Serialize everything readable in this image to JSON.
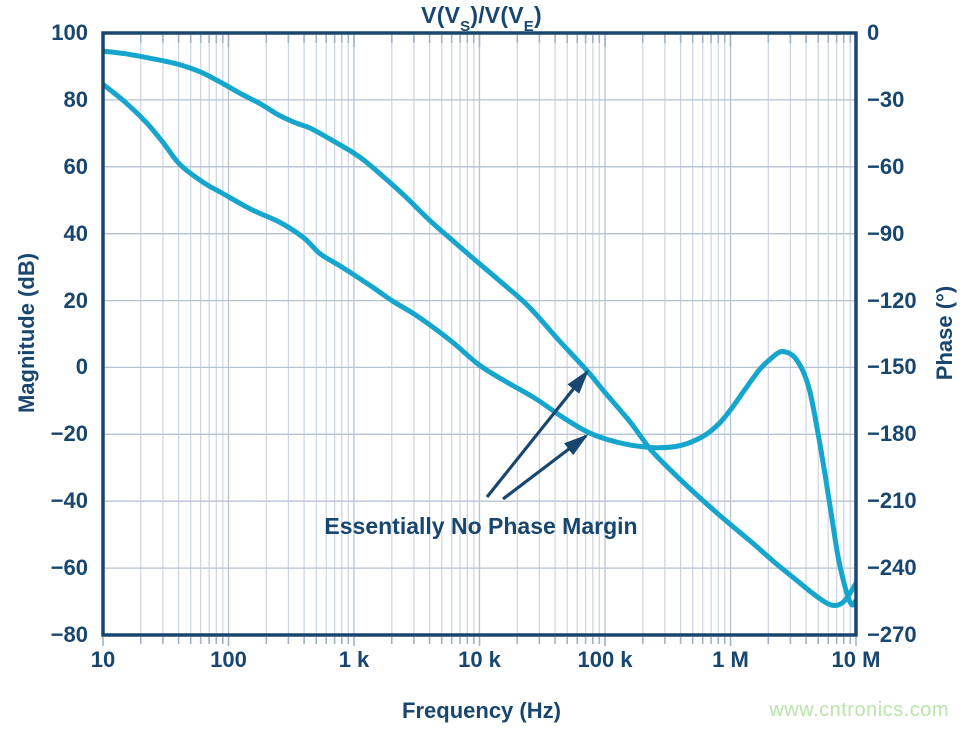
{
  "title": {
    "pre": "V(V",
    "sub1": "S",
    "mid": ")/V(V",
    "sub2": "E",
    "post": ")"
  },
  "watermark": "www.cntronics.com",
  "colors": {
    "curve_cyan": "#15a5cd",
    "axis_navy": "#18466f",
    "grid_minor": "#cdd5e2",
    "grid_major": "#b7c2d3",
    "tick_stub": "#a3b2c6",
    "watermark_green": "#b9e5ab",
    "background": "#ffffff"
  },
  "chart_data": {
    "type": "line",
    "title": "V(V_S)/V(V_E)",
    "xlabel": "Frequency (Hz)",
    "ylabel_left": "Magnitude (dB)",
    "ylabel_right": "Phase (°)",
    "x_scale": "log",
    "xlim": [
      10,
      10000000
    ],
    "ylim_left": [
      -80,
      100
    ],
    "ylim_right": [
      -270,
      0
    ],
    "grid": true,
    "x_ticks": [
      10,
      100,
      1000,
      10000,
      100000,
      1000000,
      10000000
    ],
    "x_tick_labels": [
      "10",
      "100",
      "1 k",
      "10 k",
      "100 k",
      "1 M",
      "10 M"
    ],
    "y_left_ticks": [
      100,
      80,
      60,
      40,
      20,
      0,
      -20,
      -40,
      -60,
      -80
    ],
    "y_left_tick_labels": [
      "100",
      "80",
      "60",
      "40",
      "20",
      "0",
      "−20",
      "−40",
      "−60",
      "−80"
    ],
    "y_right_ticks": [
      0,
      -30,
      -60,
      -90,
      -120,
      -150,
      -180,
      -210,
      -240,
      -270
    ],
    "y_right_tick_labels": [
      "0",
      "−30",
      "−60",
      "−90",
      "−120",
      "−150",
      "−180",
      "−210",
      "−240",
      "−270"
    ],
    "series": [
      {
        "name": "magnitude_dB",
        "axis": "left",
        "points": [
          [
            10,
            94.6
          ],
          [
            15,
            93.8
          ],
          [
            25,
            92.3
          ],
          [
            40,
            90.6
          ],
          [
            60,
            88.3
          ],
          [
            90,
            84.9
          ],
          [
            123,
            82
          ],
          [
            180,
            78.8
          ],
          [
            250,
            75.5
          ],
          [
            350,
            73
          ],
          [
            450,
            71.5
          ],
          [
            700,
            67.5
          ],
          [
            1100,
            63
          ],
          [
            1600,
            58
          ],
          [
            2500,
            51.5
          ],
          [
            4000,
            44
          ],
          [
            6300,
            37.5
          ],
          [
            10000,
            31
          ],
          [
            16000,
            24.5
          ],
          [
            25000,
            18
          ],
          [
            42000,
            8.5
          ],
          [
            72000,
            -1
          ],
          [
            100000,
            -7.5
          ],
          [
            160000,
            -16.5
          ],
          [
            230000,
            -24.5
          ],
          [
            350000,
            -31.5
          ],
          [
            500000,
            -37
          ],
          [
            700000,
            -42
          ],
          [
            1000000,
            -47
          ],
          [
            1500000,
            -52.5
          ],
          [
            2200000,
            -58
          ],
          [
            3200000,
            -63
          ],
          [
            4500000,
            -67.5
          ],
          [
            6300000,
            -71
          ],
          [
            8000000,
            -70
          ],
          [
            10000000,
            -64.5
          ]
        ]
      },
      {
        "name": "phase_deg",
        "axis": "right",
        "points": [
          [
            10,
            -23
          ],
          [
            15,
            -31
          ],
          [
            22,
            -40
          ],
          [
            30,
            -49
          ],
          [
            41,
            -59
          ],
          [
            63,
            -67
          ],
          [
            90,
            -72
          ],
          [
            150,
            -79
          ],
          [
            258,
            -85
          ],
          [
            400,
            -92
          ],
          [
            536,
            -99
          ],
          [
            750,
            -104
          ],
          [
            1000,
            -108.5
          ],
          [
            1410,
            -114
          ],
          [
            2000,
            -120
          ],
          [
            3200,
            -127
          ],
          [
            5900,
            -138
          ],
          [
            10000,
            -149
          ],
          [
            17000,
            -157
          ],
          [
            28000,
            -164
          ],
          [
            45000,
            -172
          ],
          [
            70000,
            -178.5
          ],
          [
            100000,
            -182
          ],
          [
            150000,
            -184.5
          ],
          [
            250000,
            -186
          ],
          [
            400000,
            -185
          ],
          [
            600000,
            -181
          ],
          [
            800000,
            -175.5
          ],
          [
            1000000,
            -169
          ],
          [
            1300000,
            -160
          ],
          [
            1700000,
            -151
          ],
          [
            2100000,
            -146
          ],
          [
            2500000,
            -143
          ],
          [
            2900000,
            -143.5
          ],
          [
            3300000,
            -146
          ],
          [
            3800000,
            -152
          ],
          [
            4300000,
            -161
          ],
          [
            5000000,
            -180
          ],
          [
            5700000,
            -199
          ],
          [
            6400000,
            -217
          ],
          [
            7100000,
            -233
          ],
          [
            7800000,
            -244
          ],
          [
            8600000,
            -252.5
          ],
          [
            9300000,
            -256.5
          ],
          [
            10000000,
            -254.5
          ]
        ]
      }
    ],
    "annotation": {
      "text": "Essentially No Phase Margin",
      "arrows": [
        {
          "from": [
            487,
            497
          ],
          "to": [
            587,
            372
          ]
        },
        {
          "from": [
            503,
            499
          ],
          "to": [
            586,
            436
          ]
        }
      ]
    }
  }
}
